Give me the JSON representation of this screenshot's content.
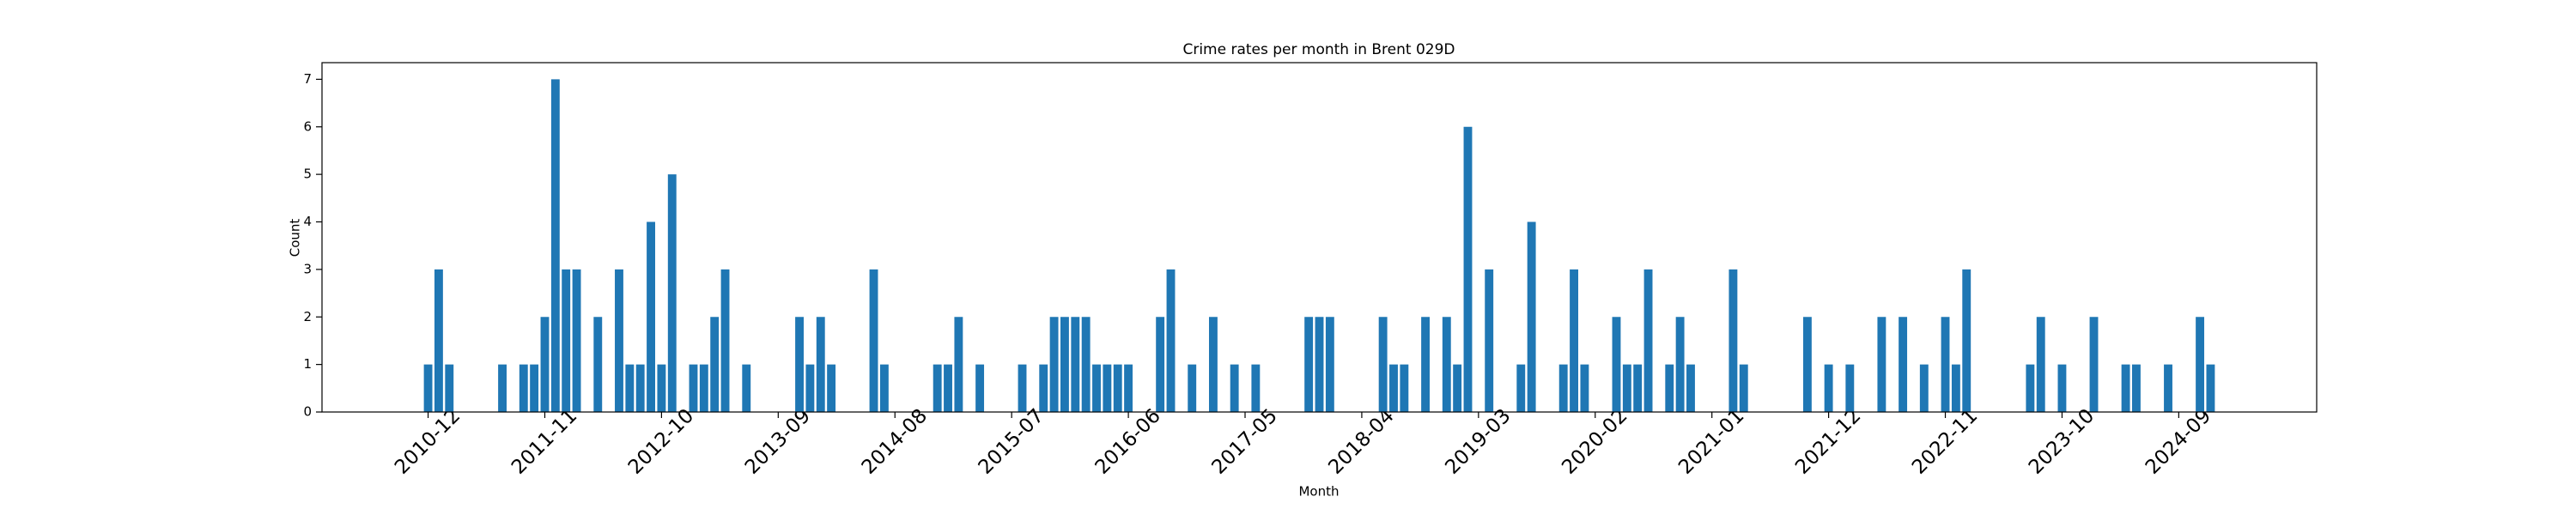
{
  "chart_data": {
    "type": "bar",
    "title": "Crime rates per month in Brent 029D",
    "xlabel": "Month",
    "ylabel": "Count",
    "color": "#1f77b4",
    "grid": false,
    "x": [
      "2010-12",
      "2011-01",
      "2011-02",
      "2011-07",
      "2011-09",
      "2011-10",
      "2011-11",
      "2011-12",
      "2012-01",
      "2012-02",
      "2012-04",
      "2012-06",
      "2012-07",
      "2012-08",
      "2012-09",
      "2012-10",
      "2012-11",
      "2013-01",
      "2013-02",
      "2013-03",
      "2013-04",
      "2013-06",
      "2013-11",
      "2013-12",
      "2014-01",
      "2014-02",
      "2014-06",
      "2014-07",
      "2014-12",
      "2015-01",
      "2015-02",
      "2015-04",
      "2015-08",
      "2015-10",
      "2015-11",
      "2015-12",
      "2016-01",
      "2016-02",
      "2016-03",
      "2016-04",
      "2016-05",
      "2016-06",
      "2016-09",
      "2016-10",
      "2016-12",
      "2017-02",
      "2017-04",
      "2017-06",
      "2017-11",
      "2017-12",
      "2018-01",
      "2018-06",
      "2018-07",
      "2018-08",
      "2018-10",
      "2018-12",
      "2019-01",
      "2019-02",
      "2019-04",
      "2019-07",
      "2019-08",
      "2019-11",
      "2019-12",
      "2020-01",
      "2020-04",
      "2020-05",
      "2020-06",
      "2020-07",
      "2020-09",
      "2020-10",
      "2020-11",
      "2021-03",
      "2021-04",
      "2021-10",
      "2021-12",
      "2022-02",
      "2022-05",
      "2022-07",
      "2022-09",
      "2022-11",
      "2022-12",
      "2023-01",
      "2023-07",
      "2023-08",
      "2023-10",
      "2024-01",
      "2024-04",
      "2024-05",
      "2024-08",
      "2024-11",
      "2024-12"
    ],
    "values": [
      1,
      3,
      1,
      1,
      1,
      1,
      2,
      7,
      3,
      3,
      2,
      3,
      1,
      1,
      4,
      1,
      5,
      1,
      1,
      2,
      3,
      1,
      2,
      1,
      2,
      1,
      3,
      1,
      1,
      1,
      2,
      1,
      1,
      1,
      2,
      2,
      2,
      2,
      1,
      1,
      1,
      1,
      2,
      3,
      1,
      2,
      1,
      1,
      2,
      2,
      2,
      2,
      1,
      1,
      2,
      2,
      1,
      6,
      3,
      1,
      4,
      1,
      3,
      1,
      2,
      1,
      1,
      3,
      1,
      2,
      1,
      3,
      1,
      2,
      1,
      1,
      2,
      2,
      1,
      2,
      1,
      3,
      1,
      2,
      1,
      2,
      1,
      1,
      1,
      2,
      1
    ],
    "xlim": [
      "2010-02",
      "2025-10"
    ],
    "xticks": [
      "2010-12",
      "2011-11",
      "2012-10",
      "2013-09",
      "2014-08",
      "2015-07",
      "2016-06",
      "2017-05",
      "2018-04",
      "2019-03",
      "2020-02",
      "2021-01",
      "2021-12",
      "2022-11",
      "2023-10",
      "2024-09"
    ],
    "ylim": [
      0,
      7.35
    ],
    "yticks": [
      0,
      1,
      2,
      3,
      4,
      5,
      6,
      7
    ]
  }
}
